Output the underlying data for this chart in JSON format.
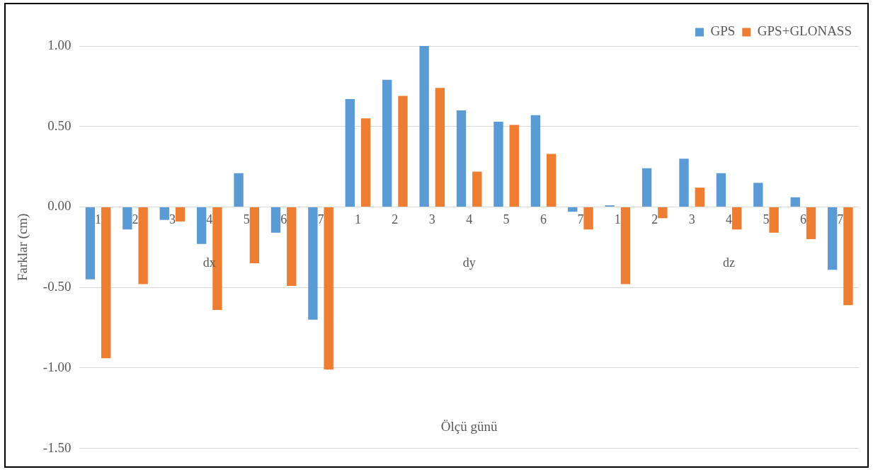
{
  "chart_data": {
    "type": "bar",
    "ylabel": "Farklar (cm)",
    "xlabel": "Ölçü günü",
    "categories": [
      "1",
      "2",
      "3",
      "4",
      "5",
      "6",
      "7",
      "1",
      "2",
      "3",
      "4",
      "5",
      "6",
      "7",
      "1",
      "2",
      "3",
      "4",
      "5",
      "6",
      "7"
    ],
    "annotations": [
      "dx",
      "dy",
      "dz"
    ],
    "series": [
      {
        "name": "GPS",
        "color": "#5b9bd5",
        "values": [
          -0.45,
          -0.14,
          -0.08,
          -0.23,
          0.21,
          -0.16,
          -0.7,
          0.67,
          0.79,
          1.0,
          0.6,
          0.53,
          0.57,
          -0.03,
          0.01,
          0.24,
          0.3,
          0.21,
          0.15,
          0.06,
          -0.39
        ]
      },
      {
        "name": "GPS+GLONASS",
        "color": "#ed7d31",
        "values": [
          -0.94,
          -0.48,
          -0.09,
          -0.64,
          -0.35,
          -0.49,
          -1.01,
          0.55,
          0.69,
          0.74,
          0.22,
          0.51,
          0.33,
          -0.14,
          -0.48,
          -0.07,
          0.12,
          -0.14,
          -0.16,
          -0.2,
          -0.61
        ]
      }
    ],
    "ylim": [
      -1.5,
      1.0
    ],
    "yticks": [
      {
        "value": -1.5,
        "label": "-1.50"
      },
      {
        "value": -1.0,
        "label": "-1.00"
      },
      {
        "value": -0.5,
        "label": "-0.50"
      },
      {
        "value": 0,
        "label": "0.00"
      },
      {
        "value": 0.5,
        "label": "0.50"
      },
      {
        "value": 1.0,
        "label": "1.00"
      }
    ],
    "grid": "y",
    "legend": "top right"
  }
}
